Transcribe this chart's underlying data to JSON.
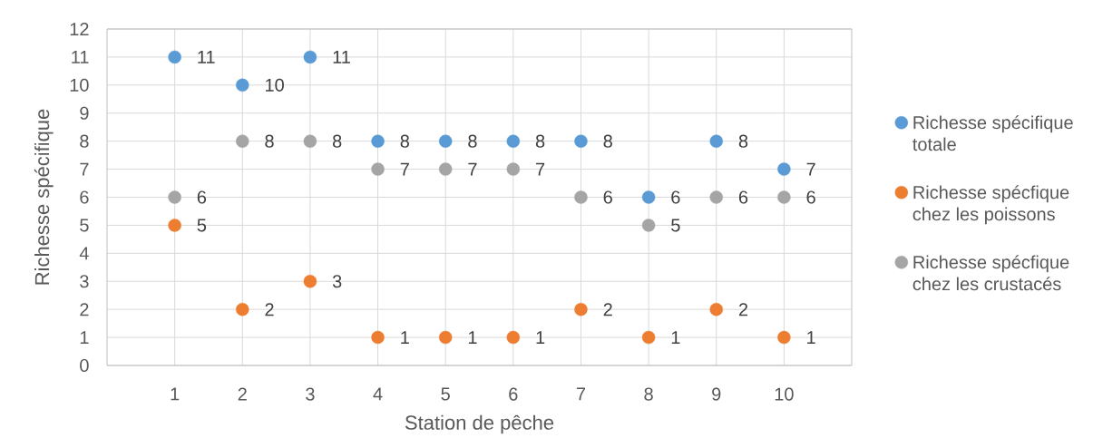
{
  "chart_data": {
    "type": "scatter",
    "xlabel": "Station de pêche",
    "ylabel": "Richesse spécifique",
    "x": [
      1,
      2,
      3,
      4,
      5,
      6,
      7,
      8,
      9,
      10
    ],
    "series": [
      {
        "name": "Richesse spécifique totale",
        "color": "#5b9bd5",
        "values": [
          11,
          10,
          11,
          8,
          8,
          8,
          8,
          6,
          8,
          7
        ]
      },
      {
        "name": "Richesse spécfique chez les poissons",
        "color": "#ed7d31",
        "values": [
          5,
          2,
          3,
          1,
          1,
          1,
          2,
          1,
          2,
          1
        ]
      },
      {
        "name": "Richesse spécfique chez les crustacés",
        "color": "#a5a5a5",
        "values": [
          6,
          8,
          8,
          7,
          7,
          7,
          6,
          5,
          6,
          6
        ]
      }
    ],
    "xlim": [
      0,
      11
    ],
    "xticks": [
      1,
      2,
      3,
      4,
      5,
      6,
      7,
      8,
      9,
      10
    ],
    "ylim": [
      0,
      12
    ],
    "yticks": [
      0,
      1,
      2,
      3,
      4,
      5,
      6,
      7,
      8,
      9,
      10,
      11,
      12
    ],
    "grid": true,
    "legend": "right",
    "marker": "circle",
    "data_labels": true
  }
}
